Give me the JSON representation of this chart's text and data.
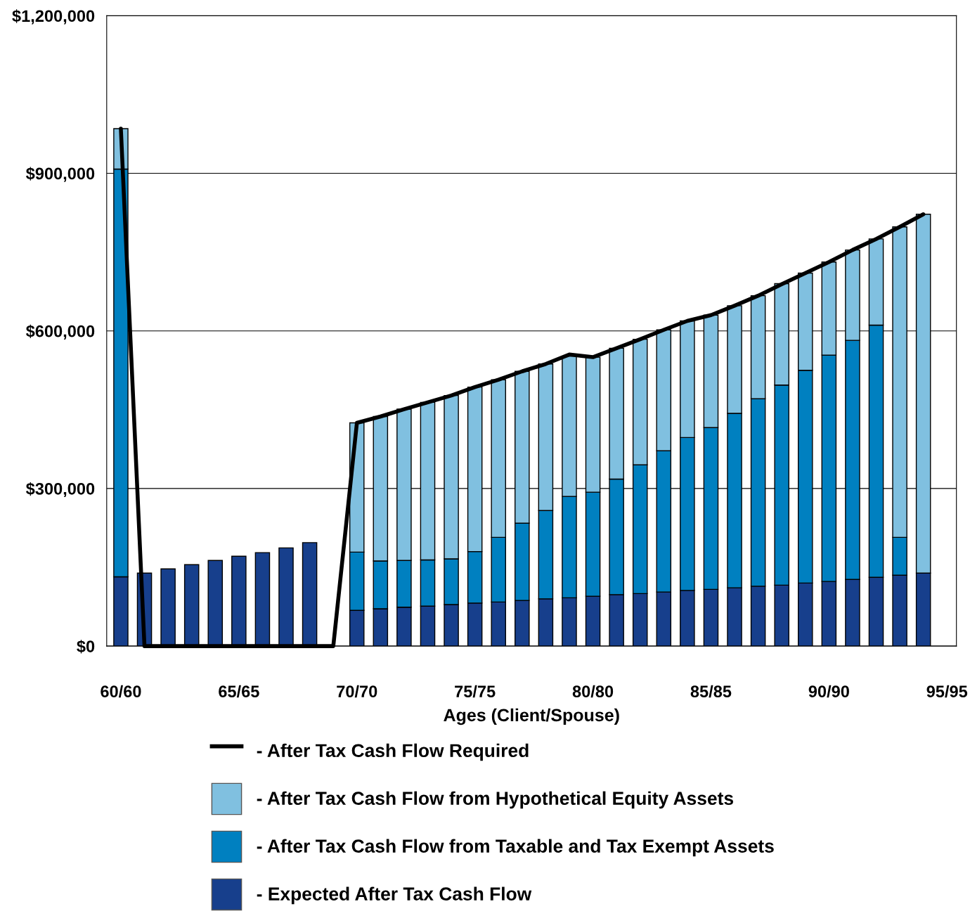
{
  "chart_data": {
    "type": "bar",
    "stacked": true,
    "xlabel": "Ages (Client/Spouse)",
    "categories": [
      "60/60",
      null,
      null,
      null,
      null,
      "65/65",
      null,
      null,
      null,
      null,
      "70/70",
      null,
      null,
      null,
      null,
      "75/75",
      null,
      null,
      null,
      null,
      "80/80",
      null,
      null,
      null,
      null,
      "85/85",
      null,
      null,
      null,
      null,
      "90/90",
      null,
      null,
      null,
      null,
      "95/95"
    ],
    "series": [
      {
        "name": "- After Tax Cash Flow Required",
        "type": "line",
        "color": "#000000",
        "values": [
          985000,
          0,
          0,
          0,
          0,
          0,
          0,
          0,
          0,
          0,
          425000,
          437000,
          451000,
          464000,
          477000,
          493000,
          507000,
          523000,
          537000,
          555000,
          550000,
          567000,
          584000,
          602000,
          619000,
          630000,
          648000,
          667000,
          689000,
          710000,
          731000,
          754000,
          775000,
          798000,
          822000,
          null
        ]
      },
      {
        "name": "- Expected After Tax Cash Flow",
        "color": "#173f8c",
        "values": [
          132000,
          139000,
          147000,
          155000,
          163000,
          171000,
          178000,
          187000,
          197000,
          null,
          68000,
          71000,
          74000,
          76000,
          79000,
          82000,
          84000,
          87000,
          90000,
          92000,
          95000,
          98000,
          100000,
          103000,
          106000,
          108000,
          111000,
          114000,
          116000,
          120000,
          123000,
          127000,
          131000,
          135000,
          139000,
          null
        ]
      },
      {
        "name": "- After Tax Cash Flow from Taxable and Tax Exempt Assets",
        "color": "#0080c0",
        "values": [
          776000,
          null,
          null,
          null,
          null,
          null,
          null,
          null,
          null,
          null,
          111000,
          91000,
          89000,
          88000,
          87000,
          98000,
          123000,
          147000,
          168000,
          193000,
          198000,
          220000,
          245000,
          269000,
          291000,
          308000,
          332000,
          357000,
          381000,
          405000,
          431000,
          455000,
          480000,
          72000,
          null,
          null
        ]
      },
      {
        "name": "- After Tax Cash Flow from Hypothetical Equity Assets",
        "color": "#80c0e0",
        "values": [
          77000,
          null,
          null,
          null,
          null,
          null,
          null,
          null,
          null,
          null,
          246000,
          275000,
          288000,
          300000,
          311000,
          313000,
          300000,
          289000,
          279000,
          267000,
          257000,
          249000,
          239000,
          230000,
          222000,
          214000,
          205000,
          196000,
          193000,
          185000,
          177000,
          172000,
          164000,
          591000,
          683000,
          null
        ]
      }
    ],
    "ylim": [
      0,
      1200000
    ],
    "yticks": [
      {
        "value": 0,
        "label": "$0"
      },
      {
        "value": 300000,
        "label": "$300,000"
      },
      {
        "value": 600000,
        "label": "$600,000"
      },
      {
        "value": 900000,
        "label": "$900,000"
      },
      {
        "value": 1200000,
        "label": "$1,200,000"
      }
    ],
    "grid": "y",
    "legend": "bottom",
    "line_style": "solid",
    "marker": "none"
  }
}
